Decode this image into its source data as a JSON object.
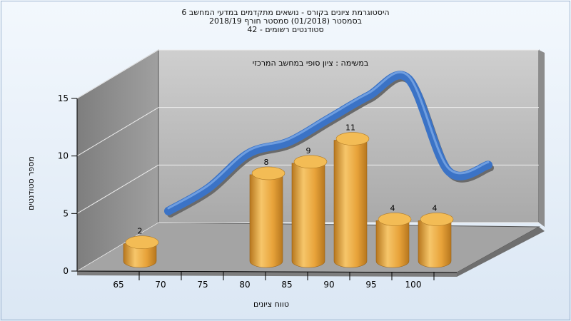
{
  "chart_data": {
    "type": "bar",
    "title": "היסטוגרמת ציונים בקורס - נושאים מתקדמים במדעי המחשב 6",
    "subtitle_lines": [
      "בסמסטר  (01/2018)  סמסטר חורף 2018/19",
      "סטודנטים רשומים - 42"
    ],
    "annotation": "במשימה : ציון סופי במחשב המרכזי",
    "xlabel": "טווח ציונים",
    "ylabel": "מספר סטודנטים",
    "categories": [
      "65",
      "70",
      "75",
      "80",
      "85",
      "90",
      "95",
      "100"
    ],
    "values": [
      2,
      0,
      0,
      8,
      9,
      11,
      4,
      4
    ],
    "data_labels": [
      "2",
      "",
      "",
      "8",
      "9",
      "11",
      "4",
      "4"
    ],
    "y_ticks": [
      "0",
      "5",
      "10",
      "15"
    ],
    "ylim": [
      0,
      15
    ],
    "curve": [
      {
        "x": "65",
        "y": 1
      },
      {
        "x": "70",
        "y": 3
      },
      {
        "x": "75",
        "y": 6
      },
      {
        "x": "80",
        "y": 7
      },
      {
        "x": "85",
        "y": 9
      },
      {
        "x": "90",
        "y": 11
      },
      {
        "x": "95",
        "y": 12.5
      },
      {
        "x": "100",
        "y": 4.5
      },
      {
        "x": "105",
        "y": 5
      }
    ],
    "colors": {
      "bar_light": "#f6c66a",
      "bar_mid": "#e8a33a",
      "bar_dark": "#b7771e",
      "curve": "#3b73c6",
      "curve_shadow": "#6a6a6a",
      "back_wall": "#b9b9b9",
      "side_wall": "#8a8a8a",
      "floor": "#a8a8a8"
    },
    "grid": true
  }
}
